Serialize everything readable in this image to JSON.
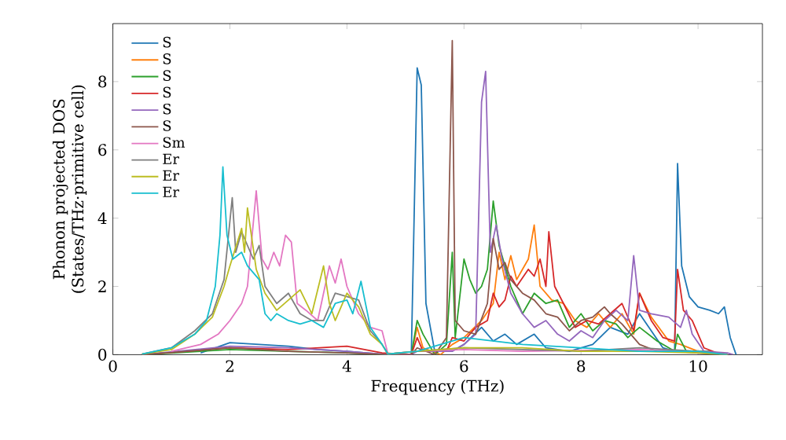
{
  "chart_data": {
    "type": "line",
    "xlabel": "Frequency (THz)",
    "ylabel": "Phonon projected DOS (States/THz·primitive cell)",
    "xlim": [
      0,
      11.1
    ],
    "ylim": [
      0,
      9.7
    ],
    "xticks": [
      0,
      2,
      4,
      6,
      8,
      10
    ],
    "yticks": [
      0,
      2,
      4,
      6,
      8
    ],
    "legend": "top left",
    "grid": false,
    "marker": "none",
    "line_style": "solid",
    "series": [
      {
        "name": "S",
        "color": "#1f77b4",
        "x": [
          1.5,
          2.0,
          2.5,
          3.0,
          3.5,
          4.0,
          4.7,
          5.1,
          5.2,
          5.27,
          5.35,
          5.5,
          5.8,
          6.0,
          6.3,
          6.5,
          6.7,
          6.9,
          7.2,
          7.4,
          7.8,
          8.2,
          8.5,
          8.8,
          9.0,
          9.2,
          9.4,
          9.6,
          9.65,
          9.72,
          9.85,
          10.0,
          10.2,
          10.35,
          10.45,
          10.55,
          10.65
        ],
        "values": [
          0.05,
          0.35,
          0.3,
          0.25,
          0.15,
          0.1,
          0,
          0,
          8.4,
          7.9,
          1.5,
          0.1,
          0.1,
          0.3,
          0.8,
          0.4,
          0.6,
          0.3,
          0.6,
          0.2,
          0.1,
          0.3,
          0.8,
          0.6,
          1.2,
          0.7,
          0.2,
          0.1,
          5.6,
          2.6,
          1.7,
          1.4,
          1.3,
          1.2,
          1.4,
          0.5,
          0
        ]
      },
      {
        "name": "S",
        "color": "#ff7f0e",
        "x": [
          5.1,
          5.2,
          5.3,
          5.6,
          5.8,
          6.0,
          6.3,
          6.5,
          6.6,
          6.7,
          6.8,
          6.9,
          7.0,
          7.1,
          7.2,
          7.3,
          7.5,
          7.7,
          7.9,
          8.1,
          8.3,
          8.5,
          8.7,
          8.9,
          9.0,
          9.2,
          9.5,
          9.7,
          10.0,
          10.4,
          10.5
        ],
        "values": [
          0,
          0.8,
          0.2,
          0,
          0.3,
          0.5,
          1.0,
          1.5,
          3.0,
          2.2,
          2.9,
          2.2,
          2.5,
          2.8,
          3.8,
          2.0,
          1.6,
          1.5,
          1.0,
          0.8,
          1.2,
          0.8,
          1.2,
          0.6,
          1.8,
          1.1,
          0.4,
          0.3,
          0.1,
          0.05,
          0
        ]
      },
      {
        "name": "S",
        "color": "#2ca02c",
        "x": [
          0.5,
          2.0,
          3.0,
          4.0,
          4.7,
          5.1,
          5.2,
          5.3,
          5.5,
          5.7,
          5.8,
          5.85,
          6.0,
          6.1,
          6.2,
          6.3,
          6.4,
          6.5,
          6.6,
          6.7,
          6.8,
          6.9,
          7.0,
          7.2,
          7.4,
          7.6,
          7.8,
          8.0,
          8.2,
          8.4,
          8.6,
          8.8,
          9.0,
          9.3,
          9.6,
          9.65,
          9.8,
          10.2,
          10.4
        ],
        "values": [
          0,
          0.15,
          0.1,
          0.05,
          0,
          0,
          1.0,
          0.6,
          0,
          0.3,
          3.0,
          0.5,
          2.8,
          2.2,
          1.8,
          2.0,
          2.5,
          4.5,
          3.2,
          2.6,
          2.0,
          1.6,
          1.2,
          1.8,
          1.5,
          1.6,
          0.8,
          1.2,
          0.7,
          1.0,
          0.9,
          0.5,
          0.8,
          0.4,
          0.1,
          0.6,
          0.1,
          0.1,
          0
        ]
      },
      {
        "name": "S",
        "color": "#d62728",
        "x": [
          0.5,
          2.0,
          3.0,
          4.0,
          4.6,
          5.1,
          5.2,
          5.3,
          5.7,
          5.8,
          6.0,
          6.2,
          6.4,
          6.5,
          6.6,
          6.7,
          6.8,
          6.9,
          7.1,
          7.2,
          7.3,
          7.4,
          7.45,
          7.55,
          7.7,
          7.9,
          8.1,
          8.3,
          8.5,
          8.7,
          8.9,
          9.0,
          9.2,
          9.4,
          9.6,
          9.65,
          9.75,
          9.9,
          10.1,
          10.4
        ],
        "values": [
          0,
          0.2,
          0.15,
          0.25,
          0.05,
          0,
          0.5,
          0.1,
          0.1,
          0.5,
          0.4,
          0.8,
          1.0,
          1.8,
          1.4,
          1.6,
          2.3,
          2.0,
          2.5,
          2.3,
          2.8,
          2.0,
          3.6,
          2.0,
          1.5,
          0.8,
          1.0,
          0.9,
          1.2,
          1.5,
          0.7,
          1.8,
          1.0,
          0.5,
          0.4,
          2.5,
          1.3,
          1.0,
          0.2,
          0
        ]
      },
      {
        "name": "S",
        "color": "#9467bd",
        "x": [
          0.5,
          2.0,
          3.0,
          4.0,
          4.7,
          5.1,
          5.2,
          5.8,
          6.0,
          6.2,
          6.3,
          6.37,
          6.45,
          6.55,
          6.65,
          6.8,
          7.0,
          7.2,
          7.4,
          7.6,
          7.8,
          8.0,
          8.2,
          8.4,
          8.6,
          8.8,
          8.9,
          9.0,
          9.2,
          9.5,
          9.7,
          9.8,
          9.9,
          10.1,
          10.5,
          10.6
        ],
        "values": [
          0,
          0.25,
          0.2,
          0.1,
          0,
          0,
          0.1,
          0.1,
          0.3,
          0.6,
          7.4,
          8.3,
          3.0,
          3.8,
          2.8,
          1.8,
          1.2,
          0.8,
          1.0,
          0.6,
          0.4,
          0.7,
          0.5,
          1.0,
          1.3,
          1.0,
          2.9,
          1.3,
          1.2,
          1.1,
          0.8,
          1.3,
          0.6,
          0.1,
          0.05,
          0
        ]
      },
      {
        "name": "S",
        "color": "#8c564b",
        "x": [
          0.5,
          2.0,
          3.0,
          4.0,
          4.7,
          5.1,
          5.2,
          5.5,
          5.7,
          5.8,
          5.85,
          6.0,
          6.2,
          6.4,
          6.5,
          6.6,
          6.7,
          6.8,
          7.0,
          7.2,
          7.4,
          7.6,
          7.8,
          8.0,
          8.2,
          8.4,
          8.5,
          8.7,
          8.9,
          9.0,
          9.3,
          9.6,
          10.0,
          10.4
        ],
        "values": [
          0,
          0.2,
          0.1,
          0.05,
          0,
          0,
          0.2,
          0,
          0.5,
          9.2,
          1.0,
          0.7,
          0.6,
          1.5,
          3.4,
          2.5,
          2.7,
          2.2,
          1.8,
          1.6,
          1.2,
          1.1,
          0.7,
          1.0,
          1.1,
          1.4,
          1.2,
          0.9,
          0.5,
          0.3,
          0.1,
          0.1,
          0.05,
          0
        ]
      },
      {
        "name": "Sm",
        "color": "#e377c2",
        "x": [
          1.0,
          1.5,
          1.8,
          2.0,
          2.2,
          2.3,
          2.45,
          2.55,
          2.65,
          2.75,
          2.85,
          2.95,
          3.05,
          3.15,
          3.3,
          3.5,
          3.7,
          3.8,
          3.9,
          4.0,
          4.2,
          4.4,
          4.6,
          4.7,
          5.2,
          6.0,
          7.0,
          9.0,
          10.0,
          10.5
        ],
        "values": [
          0.1,
          0.3,
          0.6,
          1.0,
          1.5,
          2.0,
          4.8,
          2.8,
          2.5,
          3.0,
          2.6,
          3.5,
          3.3,
          1.5,
          1.3,
          1.0,
          2.6,
          2.1,
          2.8,
          2.0,
          1.2,
          0.8,
          0.7,
          0.02,
          0.1,
          0.15,
          0.1,
          0.15,
          0.1,
          0
        ]
      },
      {
        "name": "Er",
        "color": "#7f7f7f",
        "x": [
          0.5,
          1.0,
          1.4,
          1.7,
          1.9,
          2.04,
          2.1,
          2.2,
          2.3,
          2.4,
          2.5,
          2.6,
          2.8,
          3.0,
          3.2,
          3.4,
          3.6,
          3.8,
          4.0,
          4.2,
          4.4,
          4.6,
          4.7,
          5.2,
          6.0,
          7.0,
          8.0,
          9.0,
          10.0,
          10.5
        ],
        "values": [
          0.02,
          0.2,
          0.7,
          1.2,
          2.2,
          4.6,
          3.0,
          3.6,
          3.2,
          2.8,
          3.2,
          2.0,
          1.5,
          1.8,
          1.2,
          1.0,
          1.0,
          1.8,
          1.7,
          1.6,
          0.7,
          0.3,
          0.02,
          0.1,
          0.2,
          0.15,
          0.1,
          0.2,
          0.1,
          0
        ]
      },
      {
        "name": "Er",
        "color": "#bcbd22",
        "x": [
          0.5,
          1.0,
          1.4,
          1.7,
          1.9,
          2.0,
          2.2,
          2.25,
          2.3,
          2.45,
          2.6,
          2.8,
          3.0,
          3.2,
          3.4,
          3.6,
          3.7,
          3.8,
          4.0,
          4.2,
          4.4,
          4.6,
          4.7,
          5.2,
          6.0,
          7.0,
          8.0,
          9.0,
          10.0,
          10.5
        ],
        "values": [
          0.02,
          0.15,
          0.6,
          1.1,
          2.0,
          2.6,
          3.7,
          3.0,
          4.3,
          2.5,
          1.8,
          1.3,
          1.6,
          1.9,
          1.2,
          2.6,
          1.5,
          1.0,
          1.8,
          1.4,
          0.6,
          0.3,
          0.02,
          0.1,
          0.2,
          0.2,
          0.1,
          0.1,
          0.05,
          0
        ]
      },
      {
        "name": "Er",
        "color": "#17becf",
        "x": [
          0.5,
          1.0,
          1.4,
          1.6,
          1.75,
          1.83,
          1.88,
          1.95,
          2.05,
          2.2,
          2.3,
          2.5,
          2.6,
          2.7,
          2.8,
          3.0,
          3.2,
          3.4,
          3.6,
          3.8,
          4.0,
          4.1,
          4.24,
          4.4,
          4.6,
          4.7,
          5.2,
          6.0,
          7.0,
          8.0,
          9.0,
          10.0,
          10.5
        ],
        "values": [
          0.02,
          0.2,
          0.6,
          1.0,
          2.0,
          3.5,
          5.5,
          3.5,
          2.8,
          3.0,
          2.6,
          2.2,
          1.2,
          1.0,
          1.2,
          1.0,
          0.9,
          1.0,
          0.8,
          1.5,
          1.6,
          1.2,
          2.15,
          0.8,
          0.3,
          0.02,
          0.1,
          0.5,
          0.3,
          0.2,
          0.1,
          0.1,
          0
        ]
      }
    ]
  }
}
